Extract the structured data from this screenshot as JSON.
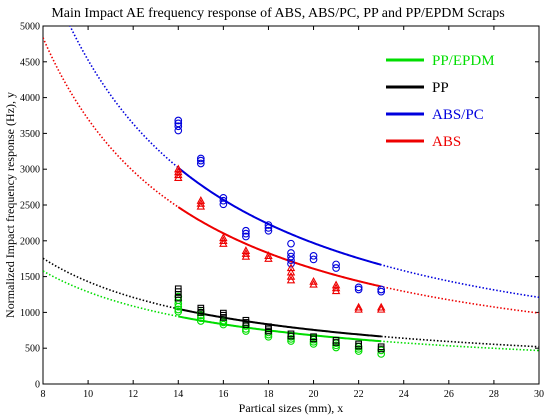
{
  "chart_data": {
    "type": "scatter",
    "title": "Main Impact AE frequency response of ABS, ABS/PC, PP and PP/EPDM Scraps",
    "xlabel": "Partical sizes (mm), x",
    "ylabel": "Normalized Impact frequency response (Hz), y",
    "xlim": [
      8,
      30
    ],
    "ylim": [
      0,
      5000
    ],
    "xticks": [
      "8",
      "10",
      "12",
      "14",
      "16",
      "18",
      "20",
      "22",
      "24",
      "26",
      "28",
      "30"
    ],
    "yticks": [
      "0",
      "500",
      "1000",
      "1500",
      "2000",
      "2500",
      "3000",
      "3500",
      "4000",
      "4500",
      "5000"
    ],
    "grid": false,
    "legend_position": "top-right",
    "series": [
      {
        "name": "PP/EPDM",
        "color": "#00dd00",
        "marker": "circle",
        "fit_exponent": 0.92,
        "fit_range": [
          14,
          23
        ],
        "x": [
          14,
          14,
          14,
          14,
          14,
          14,
          15,
          15,
          15,
          15,
          16,
          16,
          16,
          17,
          17,
          17,
          18,
          18,
          18,
          19,
          19,
          19,
          20,
          20,
          20,
          21,
          21,
          21,
          22,
          22,
          22,
          23,
          23
        ],
        "y": [
          1220,
          1170,
          1120,
          1080,
          1040,
          1010,
          1000,
          960,
          920,
          880,
          880,
          860,
          830,
          810,
          770,
          740,
          720,
          690,
          660,
          660,
          630,
          600,
          620,
          590,
          560,
          570,
          540,
          510,
          520,
          490,
          460,
          470,
          420
        ]
      },
      {
        "name": "PP",
        "color": "#000000",
        "marker": "square",
        "fit_exponent": 0.92,
        "fit_range": [
          14,
          23
        ],
        "x": [
          14,
          14,
          14,
          14,
          15,
          15,
          15,
          16,
          16,
          16,
          17,
          17,
          17,
          18,
          18,
          18,
          19,
          19,
          20,
          20,
          21,
          21,
          22,
          22,
          23,
          23
        ],
        "y": [
          1330,
          1290,
          1250,
          1200,
          1060,
          1030,
          1000,
          990,
          960,
          930,
          890,
          860,
          830,
          800,
          770,
          740,
          700,
          670,
          660,
          630,
          610,
          580,
          560,
          530,
          520,
          490
        ]
      },
      {
        "name": "ABS/PC",
        "color": "#0000dd",
        "marker": "circle",
        "fit_exponent": 1.2,
        "fit_range": [
          14,
          23
        ],
        "x": [
          14,
          14,
          14,
          14,
          15,
          15,
          15,
          16,
          16,
          16,
          17,
          17,
          17,
          18,
          18,
          18,
          19,
          19,
          19,
          19,
          19,
          20,
          20,
          21,
          21,
          22,
          22,
          23,
          23
        ],
        "y": [
          3680,
          3640,
          3600,
          3540,
          3150,
          3120,
          3080,
          2600,
          2560,
          2510,
          2140,
          2100,
          2060,
          2220,
          2180,
          2140,
          1960,
          1830,
          1780,
          1730,
          1680,
          1790,
          1740,
          1670,
          1620,
          1350,
          1320,
          1320,
          1290
        ]
      },
      {
        "name": "ABS",
        "color": "#ee0000",
        "marker": "triangle",
        "fit_exponent": 1.2,
        "fit_range": [
          14,
          23
        ],
        "x": [
          14,
          14,
          14,
          14,
          15,
          15,
          15,
          16,
          16,
          16,
          17,
          17,
          17,
          18,
          18,
          19,
          19,
          19,
          19,
          20,
          20,
          21,
          21,
          21,
          22,
          22,
          23,
          23
        ],
        "y": [
          3000,
          2960,
          2920,
          2880,
          2560,
          2520,
          2480,
          2040,
          2000,
          1960,
          1860,
          1820,
          1780,
          1790,
          1750,
          1620,
          1560,
          1500,
          1450,
          1430,
          1390,
          1380,
          1340,
          1300,
          1070,
          1040,
          1070,
          1040
        ]
      }
    ]
  }
}
